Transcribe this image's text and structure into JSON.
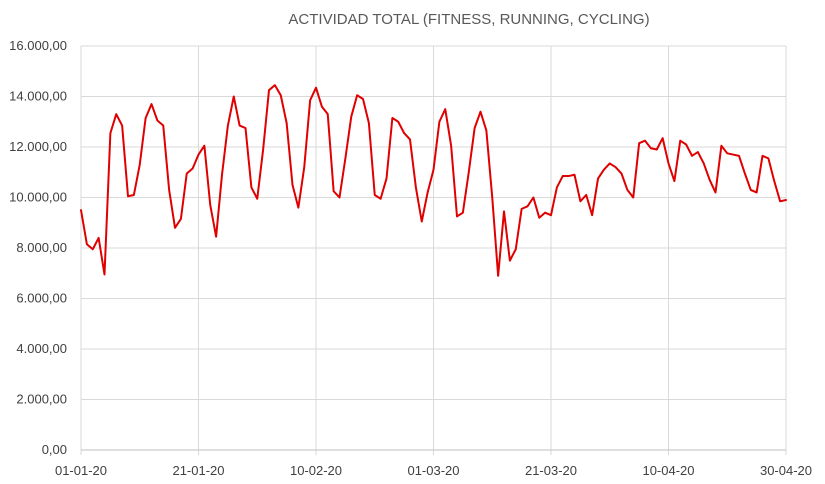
{
  "chart_data": {
    "type": "line",
    "title": "ACTIVIDAD TOTAL (FITNESS, RUNNING, CYCLING)",
    "xlabel": "",
    "ylabel": "",
    "ylim": [
      0,
      16000
    ],
    "y_ticks": [
      0,
      2000,
      4000,
      6000,
      8000,
      10000,
      12000,
      14000,
      16000
    ],
    "y_tick_labels": [
      "0,00",
      "2.000,00",
      "4.000,00",
      "6.000,00",
      "8.000,00",
      "10.000,00",
      "12.000,00",
      "14.000,00",
      "16.000,00"
    ],
    "x_range": [
      "2020-01-01",
      "2020-04-30"
    ],
    "x_ticks": [
      "2020-01-01",
      "2020-01-21",
      "2020-02-10",
      "2020-03-01",
      "2020-03-21",
      "2020-04-10",
      "2020-04-30"
    ],
    "x_tick_labels": [
      "01-01-20",
      "21-01-20",
      "10-02-20",
      "01-03-20",
      "21-03-20",
      "10-04-20",
      "30-04-20"
    ],
    "grid": true,
    "legend": "none",
    "color": "#e00000",
    "series": [
      {
        "x": [
          "2020-01-01",
          "2020-01-02",
          "2020-01-03",
          "2020-01-04",
          "2020-01-05",
          "2020-01-06",
          "2020-01-07",
          "2020-01-08",
          "2020-01-09",
          "2020-01-10",
          "2020-01-11",
          "2020-01-12",
          "2020-01-13",
          "2020-01-14",
          "2020-01-15",
          "2020-01-16",
          "2020-01-17",
          "2020-01-18",
          "2020-01-19",
          "2020-01-20",
          "2020-01-21",
          "2020-01-22",
          "2020-01-23",
          "2020-01-24",
          "2020-01-25",
          "2020-01-26",
          "2020-01-27",
          "2020-01-28",
          "2020-01-29",
          "2020-01-30",
          "2020-01-31",
          "2020-02-01",
          "2020-02-02",
          "2020-02-03",
          "2020-02-04",
          "2020-02-05",
          "2020-02-06",
          "2020-02-07",
          "2020-02-08",
          "2020-02-09",
          "2020-02-10",
          "2020-02-11",
          "2020-02-12",
          "2020-02-13",
          "2020-02-14",
          "2020-02-15",
          "2020-02-16",
          "2020-02-17",
          "2020-02-18",
          "2020-02-19",
          "2020-02-20",
          "2020-02-21",
          "2020-02-22",
          "2020-02-23",
          "2020-02-24",
          "2020-02-25",
          "2020-02-26",
          "2020-02-27",
          "2020-02-28",
          "2020-02-29",
          "2020-03-01",
          "2020-03-02",
          "2020-03-03",
          "2020-03-04",
          "2020-03-05",
          "2020-03-06",
          "2020-03-07",
          "2020-03-08",
          "2020-03-09",
          "2020-03-10",
          "2020-03-11",
          "2020-03-12",
          "2020-03-13",
          "2020-03-14",
          "2020-03-15",
          "2020-03-16",
          "2020-03-17",
          "2020-03-18",
          "2020-03-19",
          "2020-03-20",
          "2020-03-21",
          "2020-03-22",
          "2020-03-23",
          "2020-03-24",
          "2020-03-25",
          "2020-03-26",
          "2020-03-27",
          "2020-03-28",
          "2020-03-29",
          "2020-03-30",
          "2020-03-31",
          "2020-04-01",
          "2020-04-02",
          "2020-04-03",
          "2020-04-04",
          "2020-04-05",
          "2020-04-06",
          "2020-04-07",
          "2020-04-08",
          "2020-04-09",
          "2020-04-10",
          "2020-04-11",
          "2020-04-12",
          "2020-04-13",
          "2020-04-14",
          "2020-04-15",
          "2020-04-16",
          "2020-04-17",
          "2020-04-18",
          "2020-04-19",
          "2020-04-20",
          "2020-04-21",
          "2020-04-22",
          "2020-04-23",
          "2020-04-24",
          "2020-04-25",
          "2020-04-26",
          "2020-04-27",
          "2020-04-28",
          "2020-04-29",
          "2020-04-30"
        ],
        "values": [
          9500,
          8150,
          7950,
          8400,
          6950,
          12550,
          13300,
          12850,
          10050,
          10100,
          11300,
          13150,
          13700,
          13050,
          12850,
          10300,
          8800,
          9150,
          10950,
          11150,
          11700,
          12050,
          9700,
          8450,
          10900,
          12850,
          14000,
          12850,
          12750,
          10400,
          9950,
          11900,
          14250,
          14450,
          14050,
          12950,
          10500,
          9600,
          11200,
          13850,
          14350,
          13600,
          13300,
          10250,
          10000,
          11550,
          13200,
          14050,
          13900,
          12950,
          10100,
          9950,
          10750,
          13150,
          13000,
          12550,
          12300,
          10400,
          9050,
          10200,
          11100,
          13000,
          13500,
          12050,
          9250,
          9400,
          11000,
          12750,
          13400,
          12650,
          10000,
          6900,
          9450,
          7500,
          7950,
          9550,
          9650,
          10000,
          9200,
          9400,
          9300,
          10400,
          10850,
          10850,
          10900,
          9850,
          10100,
          9300,
          10750,
          11100,
          11350,
          11200,
          10950,
          10300,
          10000,
          12150,
          12250,
          11950,
          11900,
          12350,
          11350,
          10650,
          12250,
          12100,
          11650,
          11800,
          11350,
          10700,
          10200,
          12050,
          11750,
          11700,
          11650,
          10950,
          10300,
          10200,
          11650,
          11550,
          10650,
          9850,
          9900
        ]
      }
    ]
  }
}
